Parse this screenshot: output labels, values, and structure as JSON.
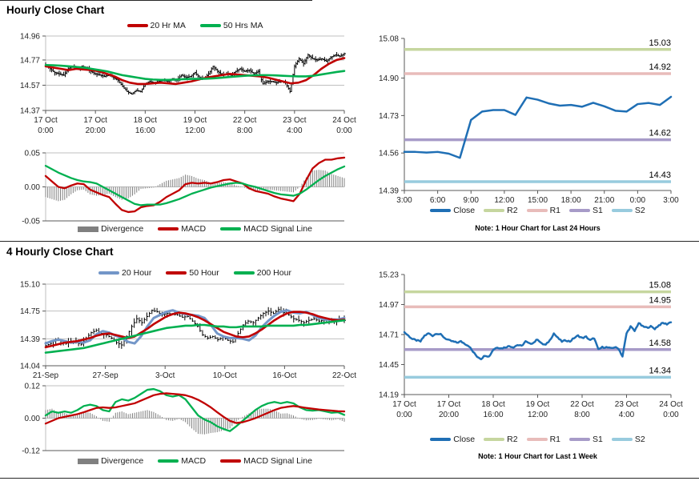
{
  "sections": [
    {
      "title": "Hourly Close Chart"
    },
    {
      "title": "4 Hourly Close Chart"
    }
  ],
  "chart_data": [
    {
      "id": "hourly-price",
      "type": "hlc",
      "ylim": [
        14.37,
        14.96
      ],
      "yticks": [
        14.96,
        14.77,
        14.57,
        14.37
      ],
      "ytick_labels": [
        "14.96",
        "14.77",
        "14.57",
        "14.37"
      ],
      "xticks": [
        [
          "17 Oct",
          "0:00"
        ],
        [
          "17 Oct",
          "20:00"
        ],
        [
          "18 Oct",
          "16:00"
        ],
        [
          "19 Oct",
          "12:00"
        ],
        [
          "22 Oct",
          "8:00"
        ],
        [
          "23 Oct",
          "4:00"
        ],
        [
          "24 Oct",
          "0:00"
        ]
      ],
      "close": [
        14.73,
        14.7,
        14.67,
        14.66,
        14.65,
        14.7,
        14.72,
        14.7,
        14.72,
        14.71,
        14.68,
        14.66,
        14.65,
        14.64,
        14.65,
        14.63,
        14.61,
        14.56,
        14.52,
        14.5,
        14.53,
        14.52,
        14.58,
        14.6,
        14.59,
        14.6,
        14.61,
        14.6,
        14.62,
        14.61,
        14.65,
        14.63,
        14.64,
        14.67,
        14.63,
        14.62,
        14.66,
        14.72,
        14.68,
        14.65,
        14.66,
        14.65,
        14.68,
        14.7,
        14.68,
        14.69,
        14.66,
        14.68,
        14.58,
        14.6,
        14.6,
        14.59,
        14.6,
        14.59,
        14.52,
        14.72,
        14.78,
        14.74,
        14.81,
        14.78,
        14.77,
        14.78,
        14.76,
        14.79,
        14.81,
        14.8,
        14.82
      ],
      "series": [
        {
          "name": "20 Hr MA",
          "color": "#C00000",
          "width": 2.6,
          "values": [
            14.72,
            14.71,
            14.7,
            14.69,
            14.7,
            14.695,
            14.69,
            14.68,
            14.66,
            14.64,
            14.61,
            14.59,
            14.58,
            14.58,
            14.585,
            14.59,
            14.585,
            14.58,
            14.59,
            14.6,
            14.615,
            14.63,
            14.64,
            14.65,
            14.66,
            14.655,
            14.65,
            14.645,
            14.64,
            14.63,
            14.615,
            14.6,
            14.585,
            14.59,
            14.61,
            14.65,
            14.7,
            14.74,
            14.77,
            14.785
          ]
        },
        {
          "name": "50 Hrs MA",
          "color": "#00B050",
          "width": 2.6,
          "values": [
            14.73,
            14.728,
            14.725,
            14.72,
            14.715,
            14.71,
            14.7,
            14.69,
            14.68,
            14.665,
            14.65,
            14.64,
            14.63,
            14.62,
            14.615,
            14.612,
            14.612,
            14.615,
            14.618,
            14.62,
            14.62,
            14.622,
            14.625,
            14.63,
            14.635,
            14.64,
            14.645,
            14.648,
            14.65,
            14.65,
            14.648,
            14.645,
            14.642,
            14.64,
            14.64,
            14.645,
            14.655,
            14.665,
            14.675,
            14.683
          ]
        }
      ],
      "legend": [
        {
          "label": "20 Hr MA",
          "color": "#C00000"
        },
        {
          "label": "50 Hrs MA",
          "color": "#00B050"
        }
      ]
    },
    {
      "id": "hourly-macd",
      "type": "macd",
      "ylim": [
        -0.05,
        0.05
      ],
      "yticks": [
        0.05,
        0.0,
        -0.05
      ],
      "ytick_labels": [
        "0.05",
        "0.00",
        "-0.05"
      ],
      "macd": {
        "name": "MACD",
        "color": "#C00000",
        "values": [
          0.016,
          0.008,
          0.0,
          -0.002,
          0.002,
          0.005,
          0.004,
          -0.004,
          -0.008,
          -0.012,
          -0.015,
          -0.025,
          -0.034,
          -0.037,
          -0.036,
          -0.03,
          -0.028,
          -0.027,
          -0.022,
          -0.015,
          -0.01,
          -0.005,
          0.004,
          0.006,
          0.005,
          0.006,
          0.005,
          0.007,
          0.01,
          0.011,
          0.008,
          0.005,
          -0.002,
          -0.006,
          -0.008,
          -0.01,
          -0.014,
          -0.017,
          -0.019,
          -0.021,
          -0.01,
          0.01,
          0.027,
          0.035,
          0.04,
          0.04,
          0.042,
          0.043
        ]
      },
      "signal": {
        "name": "MACD Signal Line",
        "color": "#00B050",
        "values": [
          0.031,
          0.026,
          0.021,
          0.017,
          0.013,
          0.01,
          0.008,
          0.007,
          0.005,
          0.0,
          -0.005,
          -0.01,
          -0.015,
          -0.02,
          -0.025,
          -0.027,
          -0.026,
          -0.026,
          -0.026,
          -0.024,
          -0.021,
          -0.018,
          -0.014,
          -0.01,
          -0.007,
          -0.004,
          -0.001,
          0.001,
          0.003,
          0.005,
          0.006,
          0.005,
          0.002,
          0.0,
          -0.003,
          -0.006,
          -0.009,
          -0.011,
          -0.012,
          -0.013,
          -0.01,
          -0.004,
          0.003,
          0.01,
          0.016,
          0.021,
          0.026,
          0.03
        ]
      },
      "divergence_color": "#808080",
      "legend": [
        {
          "label": "Divergence",
          "color": "#808080",
          "block": true
        },
        {
          "label": "MACD",
          "color": "#C00000"
        },
        {
          "label": "MACD Signal Line",
          "color": "#00B050"
        }
      ]
    },
    {
      "id": "hourly-close-sr",
      "type": "line",
      "ylim": [
        14.39,
        15.08
      ],
      "yticks": [
        15.08,
        14.9,
        14.73,
        14.56,
        14.39
      ],
      "ytick_labels": [
        "15.08",
        "14.90",
        "14.73",
        "14.56",
        "14.39"
      ],
      "xticks": [
        "3:00",
        "6:00",
        "9:00",
        "12:00",
        "15:00",
        "18:00",
        "21:00",
        "0:00",
        "3:00"
      ],
      "close": {
        "name": "Close",
        "color": "#1F6FB5",
        "values": [
          14.565,
          14.565,
          14.562,
          14.565,
          14.557,
          14.538,
          14.71,
          14.748,
          14.755,
          14.755,
          14.733,
          14.812,
          14.802,
          14.785,
          14.775,
          14.778,
          14.77,
          14.788,
          14.772,
          14.752,
          14.748,
          14.782,
          14.787,
          14.778,
          14.815
        ]
      },
      "levels": [
        {
          "name": "R2",
          "value": 15.03,
          "label": "15.03",
          "color": "#C6D69F"
        },
        {
          "name": "R1",
          "value": 14.92,
          "label": "14.92",
          "color": "#E8BCBA"
        },
        {
          "name": "S1",
          "value": 14.62,
          "label": "14.62",
          "color": "#A79BC8"
        },
        {
          "name": "S2",
          "value": 14.43,
          "label": "14.43",
          "color": "#98CBDE"
        }
      ],
      "legend": [
        {
          "label": "Close",
          "color": "#1F6FB5"
        },
        {
          "label": "R2",
          "color": "#C6D69F"
        },
        {
          "label": "R1",
          "color": "#E8BCBA"
        },
        {
          "label": "S1",
          "color": "#A79BC8"
        },
        {
          "label": "S2",
          "color": "#98CBDE"
        }
      ],
      "note": "Note: 1 Hour Chart for Last 24 Hours"
    },
    {
      "id": "fourhourly-price",
      "type": "hlc",
      "ylim": [
        14.04,
        15.1
      ],
      "yticks": [
        15.1,
        14.75,
        14.39,
        14.04
      ],
      "ytick_labels": [
        "15.10",
        "14.75",
        "14.39",
        "14.04"
      ],
      "xticks": [
        "21-Sep",
        "27-Sep",
        "3-Oct",
        "10-Oct",
        "16-Oct",
        "22-Oct"
      ],
      "close": [
        14.3,
        14.33,
        14.38,
        14.36,
        14.33,
        14.36,
        14.34,
        14.32,
        14.4,
        14.47,
        14.5,
        14.46,
        14.44,
        14.4,
        14.34,
        14.31,
        14.42,
        14.55,
        14.65,
        14.6,
        14.68,
        14.76,
        14.74,
        14.7,
        14.72,
        14.71,
        14.7,
        14.67,
        14.68,
        14.62,
        14.55,
        14.44,
        14.4,
        14.42,
        14.38,
        14.41,
        14.37,
        14.35,
        14.46,
        14.57,
        14.62,
        14.6,
        14.66,
        14.72,
        14.75,
        14.72,
        14.77,
        14.73,
        14.7,
        14.65,
        14.63,
        14.6,
        14.63,
        14.65,
        14.62,
        14.63,
        14.64,
        14.62,
        14.64,
        14.63
      ],
      "series": [
        {
          "name": "20 Hour",
          "color": "#7396C8",
          "width": 3,
          "values": [
            14.33,
            14.36,
            14.38,
            14.36,
            14.34,
            14.35,
            14.34,
            14.37,
            14.45,
            14.49,
            14.47,
            14.43,
            14.4,
            14.35,
            14.33,
            14.42,
            14.55,
            14.66,
            14.7,
            14.74,
            14.76,
            14.73,
            14.71,
            14.7,
            14.69,
            14.66,
            14.57,
            14.46,
            14.42,
            14.4,
            14.4,
            14.39,
            14.37,
            14.43,
            14.54,
            14.62,
            14.69,
            14.74,
            14.76,
            14.73,
            14.72,
            14.74,
            14.7,
            14.66,
            14.64,
            14.64,
            14.64,
            14.66
          ]
        },
        {
          "name": "50 Hour",
          "color": "#C00000",
          "width": 2.6,
          "values": [
            14.28,
            14.3,
            14.32,
            14.34,
            14.35,
            14.36,
            14.38,
            14.4,
            14.43,
            14.45,
            14.46,
            14.44,
            14.42,
            14.4,
            14.42,
            14.47,
            14.52,
            14.58,
            14.63,
            14.68,
            14.71,
            14.73,
            14.72,
            14.7,
            14.67,
            14.63,
            14.58,
            14.53,
            14.48,
            14.45,
            14.42,
            14.41,
            14.42,
            14.46,
            14.51,
            14.57,
            14.63,
            14.68,
            14.72,
            14.74,
            14.74,
            14.73,
            14.71,
            14.68,
            14.66,
            14.64,
            14.63,
            14.64
          ]
        },
        {
          "name": "200 Hour",
          "color": "#00B050",
          "width": 2.6,
          "values": [
            14.21,
            14.22,
            14.23,
            14.24,
            14.25,
            14.26,
            14.27,
            14.29,
            14.31,
            14.33,
            14.35,
            14.37,
            14.39,
            14.41,
            14.43,
            14.45,
            14.47,
            14.49,
            14.51,
            14.53,
            14.54,
            14.55,
            14.56,
            14.56,
            14.57,
            14.57,
            14.56,
            14.55,
            14.55,
            14.54,
            14.54,
            14.55,
            14.55,
            14.55,
            14.55,
            14.56,
            14.56,
            14.56,
            14.56,
            14.56,
            14.57,
            14.57,
            14.58,
            14.59,
            14.6,
            14.61,
            14.62,
            14.63
          ]
        }
      ],
      "legend": [
        {
          "label": "20 Hour",
          "color": "#7396C8"
        },
        {
          "label": "50 Hour",
          "color": "#C00000"
        },
        {
          "label": "200 Hour",
          "color": "#00B050"
        }
      ]
    },
    {
      "id": "fourhourly-macd",
      "type": "macd",
      "ylim": [
        -0.12,
        0.12
      ],
      "yticks": [
        0.12,
        0.0,
        -0.12
      ],
      "ytick_labels": [
        "0.12",
        "0.00",
        "-0.12"
      ],
      "macd": {
        "name": "MACD",
        "color": "#00B050",
        "values": [
          0.01,
          0.025,
          0.02,
          0.025,
          0.02,
          0.03,
          0.045,
          0.05,
          0.045,
          0.03,
          0.025,
          0.06,
          0.07,
          0.065,
          0.075,
          0.09,
          0.105,
          0.108,
          0.1,
          0.085,
          0.08,
          0.085,
          0.07,
          0.04,
          0.01,
          -0.005,
          -0.015,
          -0.03,
          -0.04,
          -0.048,
          -0.03,
          -0.01,
          0.01,
          0.03,
          0.045,
          0.055,
          0.06,
          0.055,
          0.06,
          0.055,
          0.04,
          0.03,
          0.028,
          0.03,
          0.025,
          0.02,
          0.022,
          0.012
        ]
      },
      "signal": {
        "name": "MACD Signal Line",
        "color": "#C00000",
        "values": [
          -0.02,
          -0.01,
          0.0,
          0.005,
          0.01,
          0.015,
          0.022,
          0.03,
          0.038,
          0.04,
          0.038,
          0.04,
          0.045,
          0.05,
          0.055,
          0.065,
          0.075,
          0.085,
          0.09,
          0.092,
          0.09,
          0.088,
          0.085,
          0.078,
          0.068,
          0.055,
          0.04,
          0.022,
          0.005,
          -0.01,
          -0.018,
          -0.015,
          -0.008,
          0.0,
          0.01,
          0.02,
          0.03,
          0.038,
          0.042,
          0.045,
          0.042,
          0.038,
          0.035,
          0.032,
          0.03,
          0.028,
          0.026,
          0.025
        ]
      },
      "divergence_color": "#808080",
      "legend": [
        {
          "label": "Divergence",
          "color": "#808080",
          "block": true
        },
        {
          "label": "MACD",
          "color": "#00B050"
        },
        {
          "label": "MACD Signal Line",
          "color": "#C00000"
        }
      ]
    },
    {
      "id": "weekly-close-sr",
      "type": "line",
      "ylim": [
        14.19,
        15.23
      ],
      "yticks": [
        15.23,
        14.97,
        14.71,
        14.45,
        14.19
      ],
      "ytick_labels": [
        "15.23",
        "14.97",
        "14.71",
        "14.45",
        "14.19"
      ],
      "xticks": [
        [
          "17 Oct",
          "0:00"
        ],
        [
          "17 Oct",
          "20:00"
        ],
        [
          "18 Oct",
          "16:00"
        ],
        [
          "19 Oct",
          "12:00"
        ],
        [
          "22 Oct",
          "8:00"
        ],
        [
          "23 Oct",
          "4:00"
        ],
        [
          "24 Oct",
          "0:00"
        ]
      ],
      "close": {
        "name": "Close",
        "color": "#1F6FB5",
        "values_ref": 0
      },
      "levels": [
        {
          "name": "R2",
          "value": 15.08,
          "label": "15.08",
          "color": "#C6D69F"
        },
        {
          "name": "R1",
          "value": 14.95,
          "label": "14.95",
          "color": "#E8BCBA"
        },
        {
          "name": "S1",
          "value": 14.58,
          "label": "14.58",
          "color": "#A79BC8"
        },
        {
          "name": "S2",
          "value": 14.34,
          "label": "14.34",
          "color": "#98CBDE"
        }
      ],
      "legend": [
        {
          "label": "Close",
          "color": "#1F6FB5"
        },
        {
          "label": "R2",
          "color": "#C6D69F"
        },
        {
          "label": "R1",
          "color": "#E8BCBA"
        },
        {
          "label": "S1",
          "color": "#A79BC8"
        },
        {
          "label": "S2",
          "color": "#98CBDE"
        }
      ],
      "note": "Note: 1 Hour Chart for Last 1 Week"
    }
  ]
}
